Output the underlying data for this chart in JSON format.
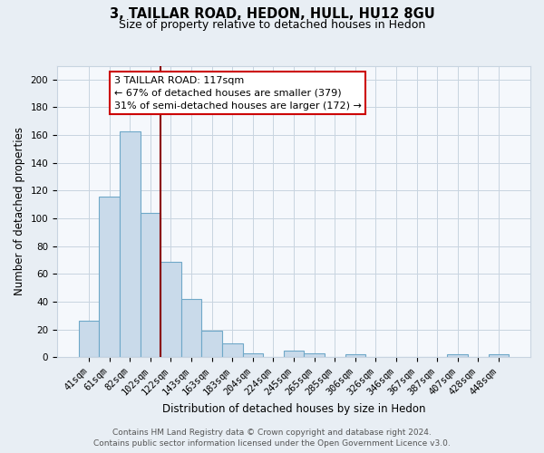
{
  "title": "3, TAILLAR ROAD, HEDON, HULL, HU12 8GU",
  "subtitle": "Size of property relative to detached houses in Hedon",
  "xlabel": "Distribution of detached houses by size in Hedon",
  "ylabel": "Number of detached properties",
  "bar_labels": [
    "41sqm",
    "61sqm",
    "82sqm",
    "102sqm",
    "122sqm",
    "143sqm",
    "163sqm",
    "183sqm",
    "204sqm",
    "224sqm",
    "245sqm",
    "265sqm",
    "285sqm",
    "306sqm",
    "326sqm",
    "346sqm",
    "367sqm",
    "387sqm",
    "407sqm",
    "428sqm",
    "448sqm"
  ],
  "bar_values": [
    26,
    116,
    163,
    104,
    69,
    42,
    19,
    10,
    3,
    0,
    5,
    3,
    0,
    2,
    0,
    0,
    0,
    0,
    2,
    0,
    2
  ],
  "bar_color": "#c9daea",
  "bar_edge_color": "#6fa8c8",
  "highlight_line_after_bar": 3,
  "highlight_line_color": "#8b0000",
  "annotation_text_line1": "3 TAILLAR ROAD: 117sqm",
  "annotation_text_line2": "← 67% of detached houses are smaller (379)",
  "annotation_text_line3": "31% of semi-detached houses are larger (172) →",
  "ylim": [
    0,
    210
  ],
  "yticks": [
    0,
    20,
    40,
    60,
    80,
    100,
    120,
    140,
    160,
    180,
    200
  ],
  "footer_line1": "Contains HM Land Registry data © Crown copyright and database right 2024.",
  "footer_line2": "Contains public sector information licensed under the Open Government Licence v3.0.",
  "background_color": "#e8eef4",
  "plot_background": "#f5f8fc",
  "grid_color": "#c8d4e0",
  "title_fontsize": 10.5,
  "subtitle_fontsize": 9,
  "annotation_fontsize": 8,
  "tick_fontsize": 7.5,
  "footer_fontsize": 6.5
}
